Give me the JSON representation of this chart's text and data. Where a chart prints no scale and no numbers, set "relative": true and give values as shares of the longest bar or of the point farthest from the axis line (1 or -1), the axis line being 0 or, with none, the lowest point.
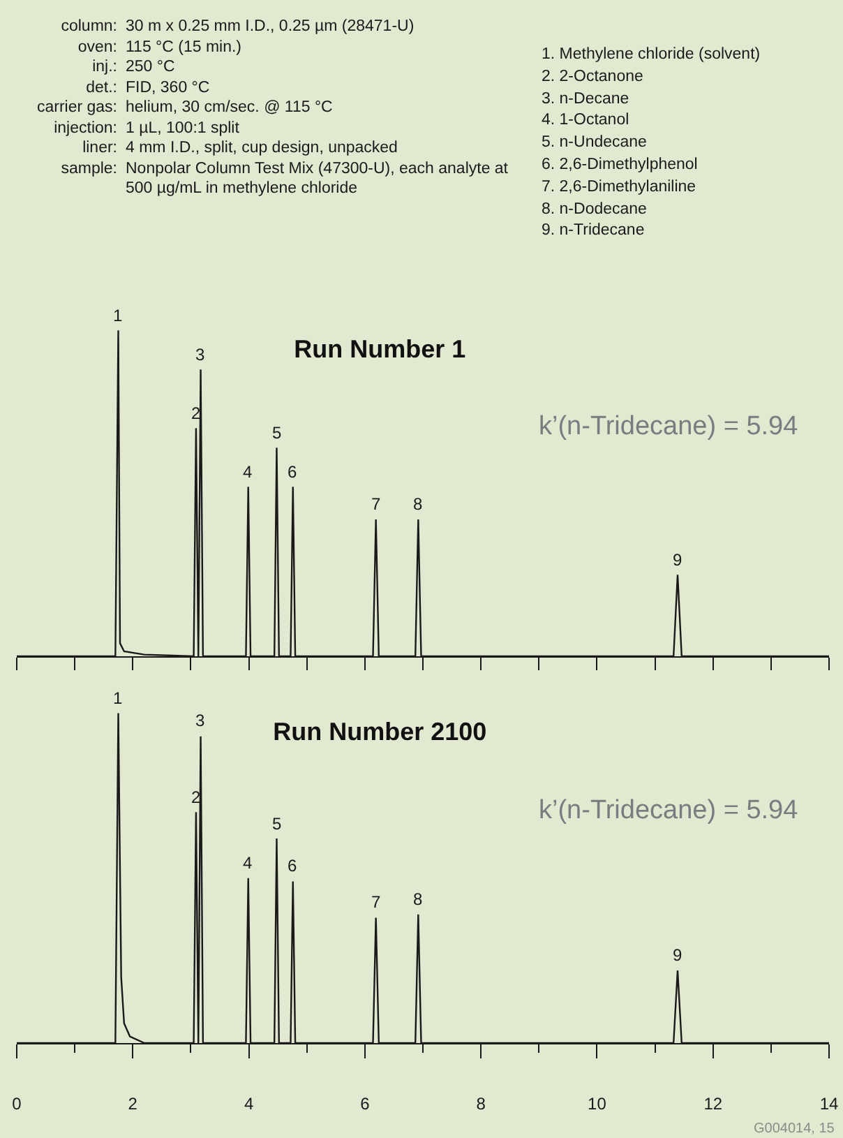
{
  "chart_data": [
    {
      "type": "other",
      "annotations": [
        "column: 30 m x 0.25 mm I.D., 0.25 µm (28471-U)",
        "oven: 115 °C (15 min.)",
        "inj.: 250 °C",
        "det.: FID, 360 °C",
        "carrier gas: helium, 30 cm/sec. @ 115 °C",
        "injection: 1 µL, 100:1 split",
        "liner: 4 mm I.D., split, cup design, unpacked",
        "sample: Nonpolar Column Test Mix (47300-U), each analyte at 500 µg/mL in methylene chloride"
      ]
    },
    {
      "type": "other",
      "annotations": [
        "1. Methylene chloride (solvent)",
        "2. 2-Octanone",
        "3. n-Decane",
        "4. 1-Octanol",
        "5. n-Undecane",
        "6. 2,6-Dimethylphenol",
        "7. 2,6-Dimethylaniline",
        "8. n-Dodecane",
        "9. n-Tridecane"
      ]
    },
    {
      "type": "line",
      "title": "Run Number 1",
      "relative": true,
      "xlim": [
        0,
        14
      ],
      "xticks": [
        {
          "value": 0,
          "label": null
        },
        {
          "value": 1,
          "label": null
        },
        {
          "value": 2,
          "label": null
        },
        {
          "value": 3,
          "label": null
        },
        {
          "value": 4,
          "label": null
        },
        {
          "value": 5,
          "label": null
        },
        {
          "value": 6,
          "label": null
        },
        {
          "value": 7,
          "label": null
        },
        {
          "value": 8,
          "label": null
        },
        {
          "value": 9,
          "label": null
        },
        {
          "value": 10,
          "label": null
        },
        {
          "value": 11,
          "label": null
        },
        {
          "value": 12,
          "label": null
        },
        {
          "value": 13,
          "label": null
        },
        {
          "value": 14,
          "label": null
        }
      ],
      "tick_labels": false,
      "grid": false,
      "marker": "none",
      "line_style": "solid",
      "series": [
        {
          "color": "#1a1a1a",
          "x": [
            0,
            1.7,
            1.75,
            1.78,
            1.85,
            2.2,
            3.05,
            3.09,
            3.13,
            3.17,
            3.21,
            3.95,
            3.99,
            4.03,
            4.44,
            4.48,
            4.52,
            4.72,
            4.76,
            4.8,
            6.14,
            6.19,
            6.24,
            6.87,
            6.92,
            6.97,
            11.32,
            11.39,
            11.46,
            14
          ],
          "values": [
            0,
            0,
            1,
            0.04,
            0.015,
            0.005,
            0,
            0.7,
            0,
            0.88,
            0,
            0,
            0.52,
            0,
            0,
            0.64,
            0,
            0,
            0.52,
            0,
            0,
            0.42,
            0,
            0,
            0.42,
            0,
            0,
            0.25,
            0,
            0
          ]
        }
      ],
      "annotations": [
        "k’(n-Tridecane) = 5.94",
        {
          "text": "1",
          "x": 1.75,
          "y": 1
        },
        {
          "text": "2",
          "x": 3.09,
          "y": 0.7
        },
        {
          "text": "3",
          "x": 3.17,
          "y": 0.88
        },
        {
          "text": "4",
          "x": 3.99,
          "y": 0.52
        },
        {
          "text": "5",
          "x": 4.48,
          "y": 0.64
        },
        {
          "text": "6",
          "x": 4.76,
          "y": 0.52
        },
        {
          "text": "7",
          "x": 6.19,
          "y": 0.42
        },
        {
          "text": "8",
          "x": 6.92,
          "y": 0.42
        },
        {
          "text": "9",
          "x": 11.39,
          "y": 0.25
        }
      ]
    },
    {
      "type": "line",
      "title": "Run Number 2100",
      "relative": true,
      "xlim": [
        0,
        14
      ],
      "xticks": [
        0,
        {
          "value": 1,
          "label": null
        },
        2,
        {
          "value": 3,
          "label": null
        },
        4,
        {
          "value": 5,
          "label": null
        },
        6,
        {
          "value": 7,
          "label": null
        },
        8,
        {
          "value": 9,
          "label": null
        },
        10,
        {
          "value": 11,
          "label": null
        },
        12,
        {
          "value": 13,
          "label": null
        },
        14
      ],
      "grid": false,
      "marker": "none",
      "line_style": "solid",
      "series": [
        {
          "color": "#1a1a1a",
          "x": [
            0,
            1.7,
            1.75,
            1.8,
            1.85,
            1.95,
            2.2,
            3.05,
            3.09,
            3.13,
            3.17,
            3.21,
            3.95,
            3.99,
            4.03,
            4.44,
            4.48,
            4.52,
            4.72,
            4.76,
            4.8,
            6.14,
            6.19,
            6.24,
            6.87,
            6.92,
            6.97,
            11.32,
            11.39,
            11.46,
            14
          ],
          "values": [
            0,
            0,
            1,
            0.2,
            0.06,
            0.02,
            0,
            0,
            0.7,
            0,
            0.93,
            0,
            0,
            0.5,
            0,
            0,
            0.62,
            0,
            0,
            0.49,
            0,
            0,
            0.38,
            0,
            0,
            0.39,
            0,
            0,
            0.22,
            0,
            0
          ]
        }
      ],
      "annotations": [
        "k’(n-Tridecane) = 5.94",
        "G004014, 15",
        {
          "text": "1",
          "x": 1.75,
          "y": 1
        },
        {
          "text": "2",
          "x": 3.09,
          "y": 0.7
        },
        {
          "text": "3",
          "x": 3.17,
          "y": 0.93
        },
        {
          "text": "4",
          "x": 3.99,
          "y": 0.5
        },
        {
          "text": "5",
          "x": 4.48,
          "y": 0.62
        },
        {
          "text": "6",
          "x": 4.76,
          "y": 0.49
        },
        {
          "text": "7",
          "x": 6.19,
          "y": 0.38
        },
        {
          "text": "8",
          "x": 6.92,
          "y": 0.39
        },
        {
          "text": "9",
          "x": 11.39,
          "y": 0.22
        }
      ]
    }
  ]
}
